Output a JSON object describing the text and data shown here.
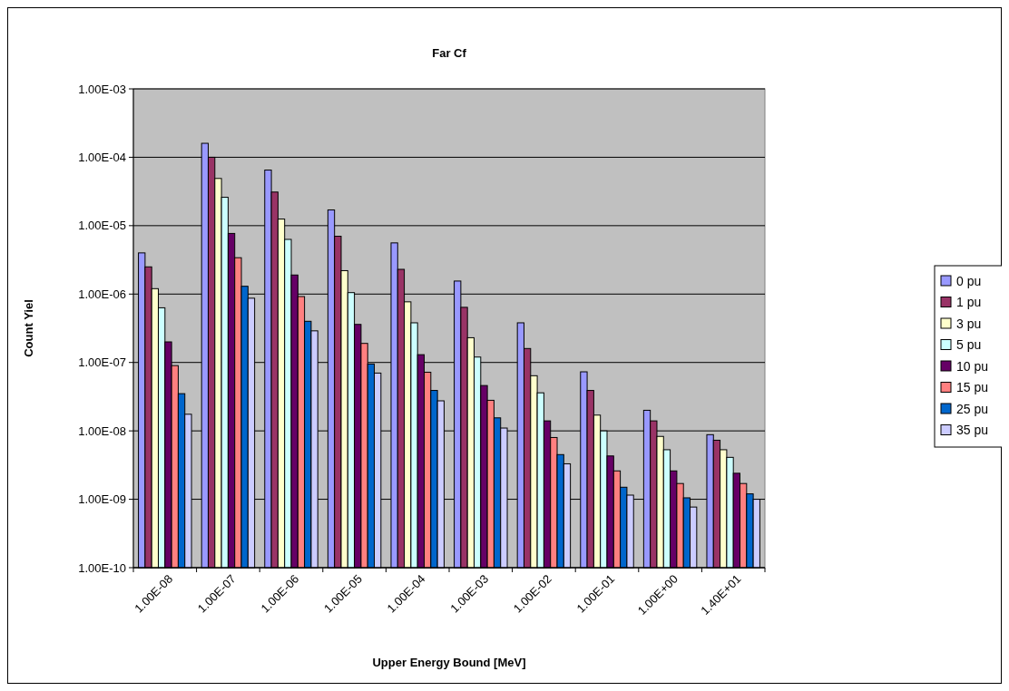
{
  "chart_data": {
    "type": "bar",
    "title": "Far Cf",
    "xlabel": "Upper Energy Bound [MeV]",
    "ylabel": "Count Yiel",
    "log": true,
    "grid": "y",
    "legend": "right",
    "categories": [
      "1.00E-08",
      "1.00E-07",
      "1.00E-06",
      "1.00E-05",
      "1.00E-04",
      "1.00E-03",
      "1.00E-02",
      "1.00E-01",
      "1.00E+00",
      "1.40E+01"
    ],
    "ylim": [
      1e-10,
      0.001
    ],
    "yticks": [
      {
        "value": 1e-10,
        "label": "1.00E-10"
      },
      {
        "value": 1e-09,
        "label": "1.00E-09"
      },
      {
        "value": 1e-08,
        "label": "1.00E-08"
      },
      {
        "value": 1e-07,
        "label": "1.00E-07"
      },
      {
        "value": 1e-06,
        "label": "1.00E-06"
      },
      {
        "value": 1e-05,
        "label": "1.00E-05"
      },
      {
        "value": 0.0001,
        "label": "1.00E-04"
      },
      {
        "value": 0.001,
        "label": "1.00E-03"
      }
    ],
    "series": [
      {
        "name": "0 pu",
        "color": "#9999ff",
        "values": [
          4e-06,
          0.00016,
          6.5e-05,
          1.7e-05,
          5.6e-06,
          1.55e-06,
          3.8e-07,
          7.3e-08,
          2e-08,
          8.8e-09
        ]
      },
      {
        "name": "1 pu",
        "color": "#993366",
        "values": [
          2.5e-06,
          0.0001,
          3.1e-05,
          7e-06,
          2.3e-06,
          6.4e-07,
          1.6e-07,
          3.9e-08,
          1.4e-08,
          7.3e-09
        ]
      },
      {
        "name": "3 pu",
        "color": "#ffffcc",
        "values": [
          1.2e-06,
          4.9e-05,
          1.25e-05,
          2.2e-06,
          7.7e-07,
          2.3e-07,
          6.4e-08,
          1.7e-08,
          8.3e-09,
          5.3e-09
        ]
      },
      {
        "name": "5 pu",
        "color": "#ccffff",
        "values": [
          6.3e-07,
          2.6e-05,
          6.3e-06,
          1.05e-06,
          3.8e-07,
          1.2e-07,
          3.6e-08,
          1e-08,
          5.3e-09,
          4.1e-09
        ]
      },
      {
        "name": "10 pu",
        "color": "#660066",
        "values": [
          2e-07,
          7.7e-06,
          1.9e-06,
          3.6e-07,
          1.3e-07,
          4.6e-08,
          1.4e-08,
          4.3e-09,
          2.6e-09,
          2.4e-09
        ]
      },
      {
        "name": "15 pu",
        "color": "#ff8080",
        "values": [
          9e-08,
          3.4e-06,
          9.2e-07,
          1.9e-07,
          7.2e-08,
          2.8e-08,
          8e-09,
          2.6e-09,
          1.7e-09,
          1.7e-09
        ]
      },
      {
        "name": "25 pu",
        "color": "#0066cc",
        "values": [
          3.5e-08,
          1.3e-06,
          4e-07,
          9.5e-08,
          3.9e-08,
          1.55e-08,
          4.5e-09,
          1.5e-09,
          1.05e-09,
          1.2e-09
        ]
      },
      {
        "name": "35 pu",
        "color": "#ccccff",
        "values": [
          1.75e-08,
          8.7e-07,
          2.9e-07,
          7e-08,
          2.75e-08,
          1.1e-08,
          3.3e-09,
          1.15e-09,
          7.7e-10,
          1e-09
        ]
      }
    ]
  }
}
